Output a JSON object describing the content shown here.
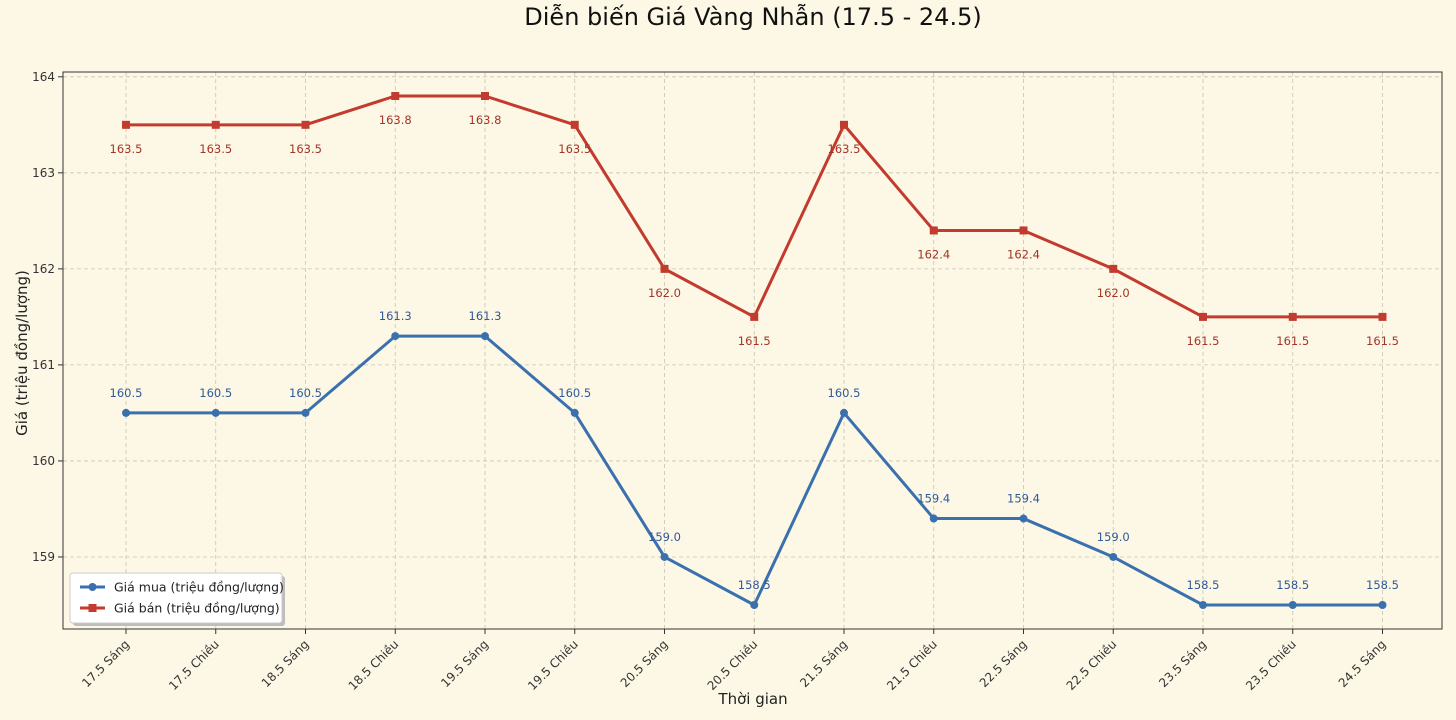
{
  "chart_data": {
    "type": "line",
    "title": "Diễn biến Giá Vàng Nhẫn (17.5 - 24.5)",
    "xlabel": "Thời gian",
    "ylabel": "Giá (triệu đồng/lượng)",
    "ylim": [
      158.25,
      164.05
    ],
    "yticks": [
      "159",
      "160",
      "161",
      "162",
      "163",
      "164"
    ],
    "grid": true,
    "legend_position": "bottom-left",
    "categories": [
      "17.5 Sáng",
      "17.5 Chiều",
      "18.5 Sáng",
      "18.5 Chiều",
      "19.5 Sáng",
      "19.5 Chiều",
      "20.5 Sáng",
      "20.5 Chiều",
      "21.5 Sáng",
      "21.5 Chiều",
      "22.5 Sáng",
      "22.5 Chiều",
      "23.5 Sáng",
      "23.5 Chiều",
      "24.5 Sáng"
    ],
    "series": [
      {
        "name": "Giá mua (triệu đồng/lượng)",
        "color": "#3a70ad",
        "marker": "circle",
        "values": [
          160.5,
          160.5,
          160.5,
          161.3,
          161.3,
          160.5,
          159.0,
          158.5,
          160.5,
          159.4,
          159.4,
          159.0,
          158.5,
          158.5,
          158.5
        ],
        "labels": [
          "160.5",
          "160.5",
          "160.5",
          "161.3",
          "161.3",
          "160.5",
          "159.0",
          "158.5",
          "160.5",
          "159.4",
          "159.4",
          "159.0",
          "158.5",
          "158.5",
          "158.5"
        ]
      },
      {
        "name": "Giá bán (triệu đồng/lượng)",
        "color": "#c23b2e",
        "marker": "square",
        "values": [
          163.5,
          163.5,
          163.5,
          163.8,
          163.8,
          163.5,
          162.0,
          161.5,
          163.5,
          162.4,
          162.4,
          162.0,
          161.5,
          161.5,
          161.5
        ],
        "labels": [
          "163.5",
          "163.5",
          "163.5",
          "163.8",
          "163.8",
          "163.5",
          "162.0",
          "161.5",
          "163.5",
          "162.4",
          "162.4",
          "162.0",
          "161.5",
          "161.5",
          "161.5"
        ]
      }
    ]
  }
}
